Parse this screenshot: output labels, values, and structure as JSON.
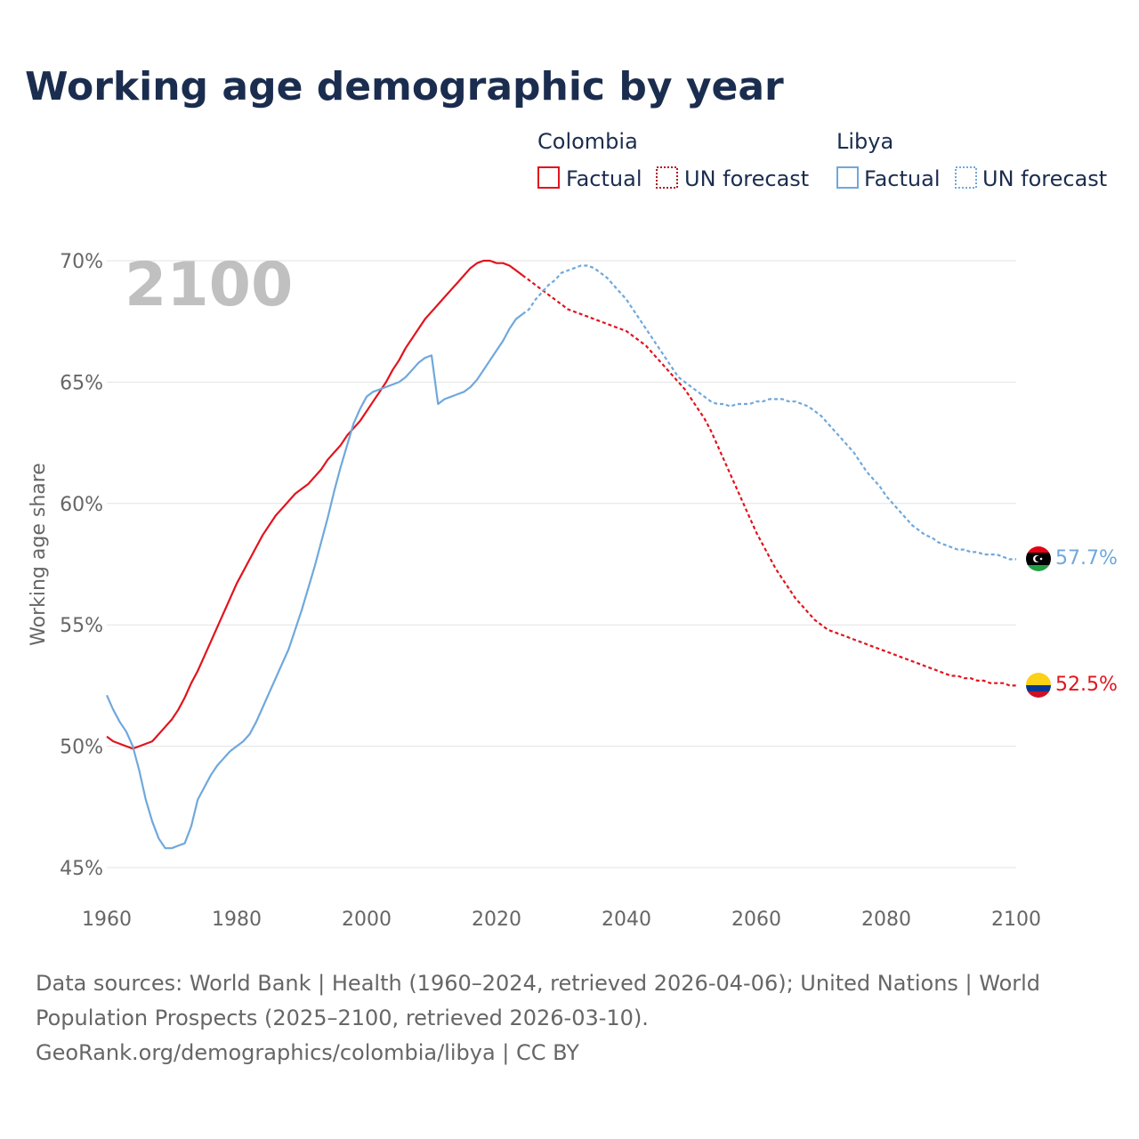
{
  "title": "Working age demographic by year",
  "year_watermark": "2100",
  "legend": {
    "groups": [
      {
        "country": "Colombia",
        "factual_label": "Factual",
        "forecast_label": "UN forecast",
        "color": "#e0141e"
      },
      {
        "country": "Libya",
        "factual_label": "Factual",
        "forecast_label": "UN forecast",
        "color": "#6fa8dc"
      }
    ]
  },
  "end_labels": {
    "libya": "57.7%",
    "colombia": "52.5%"
  },
  "source_lines": [
    "Data sources: World Bank | Health (1960–2024, retrieved 2026-04-06); United Nations | World",
    "Population Prospects (2025–2100, retrieved 2026-03-10).",
    "GeoRank.org/demographics/colombia/libya | CC BY"
  ],
  "chart_data": {
    "type": "line",
    "title": "Working age demographic by year",
    "xlabel": "",
    "ylabel": "Working age share",
    "xlim": [
      1960,
      2100
    ],
    "ylim": [
      45,
      70
    ],
    "x_ticks": [
      1960,
      1980,
      2000,
      2020,
      2040,
      2060,
      2080,
      2100
    ],
    "y_ticks": [
      45,
      50,
      55,
      60,
      65,
      70
    ],
    "y_tick_labels": [
      "45%",
      "50%",
      "55%",
      "60%",
      "65%",
      "70%"
    ],
    "grid": true,
    "legend_position": "top-right",
    "factual_end_year": 2024,
    "series": [
      {
        "name": "Colombia",
        "color": "#e0141e",
        "points": [
          [
            1960,
            50.4
          ],
          [
            1961,
            50.2
          ],
          [
            1962,
            50.1
          ],
          [
            1963,
            50.0
          ],
          [
            1964,
            49.9
          ],
          [
            1965,
            50.0
          ],
          [
            1966,
            50.1
          ],
          [
            1967,
            50.2
          ],
          [
            1968,
            50.5
          ],
          [
            1969,
            50.8
          ],
          [
            1970,
            51.1
          ],
          [
            1971,
            51.5
          ],
          [
            1972,
            52.0
          ],
          [
            1973,
            52.6
          ],
          [
            1974,
            53.1
          ],
          [
            1975,
            53.7
          ],
          [
            1976,
            54.3
          ],
          [
            1977,
            54.9
          ],
          [
            1978,
            55.5
          ],
          [
            1979,
            56.1
          ],
          [
            1980,
            56.7
          ],
          [
            1981,
            57.2
          ],
          [
            1982,
            57.7
          ],
          [
            1983,
            58.2
          ],
          [
            1984,
            58.7
          ],
          [
            1985,
            59.1
          ],
          [
            1986,
            59.5
          ],
          [
            1987,
            59.8
          ],
          [
            1988,
            60.1
          ],
          [
            1989,
            60.4
          ],
          [
            1990,
            60.6
          ],
          [
            1991,
            60.8
          ],
          [
            1992,
            61.1
          ],
          [
            1993,
            61.4
          ],
          [
            1994,
            61.8
          ],
          [
            1995,
            62.1
          ],
          [
            1996,
            62.4
          ],
          [
            1997,
            62.8
          ],
          [
            1998,
            63.1
          ],
          [
            1999,
            63.4
          ],
          [
            2000,
            63.8
          ],
          [
            2001,
            64.2
          ],
          [
            2002,
            64.6
          ],
          [
            2003,
            65.0
          ],
          [
            2004,
            65.5
          ],
          [
            2005,
            65.9
          ],
          [
            2006,
            66.4
          ],
          [
            2007,
            66.8
          ],
          [
            2008,
            67.2
          ],
          [
            2009,
            67.6
          ],
          [
            2010,
            67.9
          ],
          [
            2011,
            68.2
          ],
          [
            2012,
            68.5
          ],
          [
            2013,
            68.8
          ],
          [
            2014,
            69.1
          ],
          [
            2015,
            69.4
          ],
          [
            2016,
            69.7
          ],
          [
            2017,
            69.9
          ],
          [
            2018,
            70.0
          ],
          [
            2019,
            70.0
          ],
          [
            2020,
            69.9
          ],
          [
            2021,
            69.9
          ],
          [
            2022,
            69.8
          ],
          [
            2023,
            69.6
          ],
          [
            2024,
            69.4
          ],
          [
            2025,
            69.2
          ],
          [
            2026,
            69.0
          ],
          [
            2027,
            68.8
          ],
          [
            2028,
            68.6
          ],
          [
            2029,
            68.4
          ],
          [
            2030,
            68.2
          ],
          [
            2031,
            68.0
          ],
          [
            2032,
            67.9
          ],
          [
            2033,
            67.8
          ],
          [
            2034,
            67.7
          ],
          [
            2035,
            67.6
          ],
          [
            2036,
            67.5
          ],
          [
            2037,
            67.4
          ],
          [
            2038,
            67.3
          ],
          [
            2039,
            67.2
          ],
          [
            2040,
            67.1
          ],
          [
            2041,
            66.9
          ],
          [
            2042,
            66.7
          ],
          [
            2043,
            66.5
          ],
          [
            2044,
            66.2
          ],
          [
            2045,
            65.9
          ],
          [
            2046,
            65.6
          ],
          [
            2047,
            65.3
          ],
          [
            2048,
            65.0
          ],
          [
            2049,
            64.7
          ],
          [
            2050,
            64.3
          ],
          [
            2051,
            63.9
          ],
          [
            2052,
            63.5
          ],
          [
            2053,
            63.0
          ],
          [
            2054,
            62.4
          ],
          [
            2055,
            61.8
          ],
          [
            2056,
            61.2
          ],
          [
            2057,
            60.6
          ],
          [
            2058,
            60.0
          ],
          [
            2059,
            59.4
          ],
          [
            2060,
            58.8
          ],
          [
            2061,
            58.3
          ],
          [
            2062,
            57.8
          ],
          [
            2063,
            57.3
          ],
          [
            2064,
            56.9
          ],
          [
            2065,
            56.5
          ],
          [
            2066,
            56.1
          ],
          [
            2067,
            55.8
          ],
          [
            2068,
            55.5
          ],
          [
            2069,
            55.2
          ],
          [
            2070,
            55.0
          ],
          [
            2071,
            54.8
          ],
          [
            2072,
            54.7
          ],
          [
            2073,
            54.6
          ],
          [
            2074,
            54.5
          ],
          [
            2075,
            54.4
          ],
          [
            2076,
            54.3
          ],
          [
            2077,
            54.2
          ],
          [
            2078,
            54.1
          ],
          [
            2079,
            54.0
          ],
          [
            2080,
            53.9
          ],
          [
            2081,
            53.8
          ],
          [
            2082,
            53.7
          ],
          [
            2083,
            53.6
          ],
          [
            2084,
            53.5
          ],
          [
            2085,
            53.4
          ],
          [
            2086,
            53.3
          ],
          [
            2087,
            53.2
          ],
          [
            2088,
            53.1
          ],
          [
            2089,
            53.0
          ],
          [
            2090,
            52.9
          ],
          [
            2091,
            52.9
          ],
          [
            2092,
            52.8
          ],
          [
            2093,
            52.8
          ],
          [
            2094,
            52.7
          ],
          [
            2095,
            52.7
          ],
          [
            2096,
            52.6
          ],
          [
            2097,
            52.6
          ],
          [
            2098,
            52.6
          ],
          [
            2099,
            52.5
          ],
          [
            2100,
            52.5
          ]
        ]
      },
      {
        "name": "Libya",
        "color": "#6fa8dc",
        "points": [
          [
            1960,
            52.1
          ],
          [
            1961,
            51.5
          ],
          [
            1962,
            51.0
          ],
          [
            1963,
            50.6
          ],
          [
            1964,
            50.0
          ],
          [
            1965,
            49.0
          ],
          [
            1966,
            47.8
          ],
          [
            1967,
            46.9
          ],
          [
            1968,
            46.2
          ],
          [
            1969,
            45.8
          ],
          [
            1970,
            45.8
          ],
          [
            1971,
            45.9
          ],
          [
            1972,
            46.0
          ],
          [
            1973,
            46.7
          ],
          [
            1974,
            47.8
          ],
          [
            1975,
            48.3
          ],
          [
            1976,
            48.8
          ],
          [
            1977,
            49.2
          ],
          [
            1978,
            49.5
          ],
          [
            1979,
            49.8
          ],
          [
            1980,
            50.0
          ],
          [
            1981,
            50.2
          ],
          [
            1982,
            50.5
          ],
          [
            1983,
            51.0
          ],
          [
            1984,
            51.6
          ],
          [
            1985,
            52.2
          ],
          [
            1986,
            52.8
          ],
          [
            1987,
            53.4
          ],
          [
            1988,
            54.0
          ],
          [
            1989,
            54.8
          ],
          [
            1990,
            55.6
          ],
          [
            1991,
            56.5
          ],
          [
            1992,
            57.4
          ],
          [
            1993,
            58.4
          ],
          [
            1994,
            59.4
          ],
          [
            1995,
            60.5
          ],
          [
            1996,
            61.5
          ],
          [
            1997,
            62.4
          ],
          [
            1998,
            63.3
          ],
          [
            1999,
            63.9
          ],
          [
            2000,
            64.4
          ],
          [
            2001,
            64.6
          ],
          [
            2002,
            64.7
          ],
          [
            2003,
            64.8
          ],
          [
            2004,
            64.9
          ],
          [
            2005,
            65.0
          ],
          [
            2006,
            65.2
          ],
          [
            2007,
            65.5
          ],
          [
            2008,
            65.8
          ],
          [
            2009,
            66.0
          ],
          [
            2010,
            66.1
          ],
          [
            2011,
            64.1
          ],
          [
            2012,
            64.3
          ],
          [
            2013,
            64.4
          ],
          [
            2014,
            64.5
          ],
          [
            2015,
            64.6
          ],
          [
            2016,
            64.8
          ],
          [
            2017,
            65.1
          ],
          [
            2018,
            65.5
          ],
          [
            2019,
            65.9
          ],
          [
            2020,
            66.3
          ],
          [
            2021,
            66.7
          ],
          [
            2022,
            67.2
          ],
          [
            2023,
            67.6
          ],
          [
            2024,
            67.8
          ],
          [
            2025,
            68.0
          ],
          [
            2026,
            68.4
          ],
          [
            2027,
            68.7
          ],
          [
            2028,
            69.0
          ],
          [
            2029,
            69.2
          ],
          [
            2030,
            69.5
          ],
          [
            2031,
            69.6
          ],
          [
            2032,
            69.7
          ],
          [
            2033,
            69.8
          ],
          [
            2034,
            69.8
          ],
          [
            2035,
            69.7
          ],
          [
            2036,
            69.5
          ],
          [
            2037,
            69.3
          ],
          [
            2038,
            69.0
          ],
          [
            2039,
            68.7
          ],
          [
            2040,
            68.4
          ],
          [
            2041,
            68.0
          ],
          [
            2042,
            67.6
          ],
          [
            2043,
            67.2
          ],
          [
            2044,
            66.8
          ],
          [
            2045,
            66.4
          ],
          [
            2046,
            66.0
          ],
          [
            2047,
            65.6
          ],
          [
            2048,
            65.2
          ],
          [
            2049,
            65.0
          ],
          [
            2050,
            64.8
          ],
          [
            2051,
            64.6
          ],
          [
            2052,
            64.4
          ],
          [
            2053,
            64.2
          ],
          [
            2054,
            64.1
          ],
          [
            2055,
            64.1
          ],
          [
            2056,
            64.0
          ],
          [
            2057,
            64.1
          ],
          [
            2058,
            64.1
          ],
          [
            2059,
            64.1
          ],
          [
            2060,
            64.2
          ],
          [
            2061,
            64.2
          ],
          [
            2062,
            64.3
          ],
          [
            2063,
            64.3
          ],
          [
            2064,
            64.3
          ],
          [
            2065,
            64.2
          ],
          [
            2066,
            64.2
          ],
          [
            2067,
            64.1
          ],
          [
            2068,
            64.0
          ],
          [
            2069,
            63.8
          ],
          [
            2070,
            63.6
          ],
          [
            2071,
            63.3
          ],
          [
            2072,
            63.0
          ],
          [
            2073,
            62.7
          ],
          [
            2074,
            62.4
          ],
          [
            2075,
            62.1
          ],
          [
            2076,
            61.7
          ],
          [
            2077,
            61.3
          ],
          [
            2078,
            61.0
          ],
          [
            2079,
            60.7
          ],
          [
            2080,
            60.3
          ],
          [
            2081,
            60.0
          ],
          [
            2082,
            59.7
          ],
          [
            2083,
            59.4
          ],
          [
            2084,
            59.1
          ],
          [
            2085,
            58.9
          ],
          [
            2086,
            58.7
          ],
          [
            2087,
            58.6
          ],
          [
            2088,
            58.4
          ],
          [
            2089,
            58.3
          ],
          [
            2090,
            58.2
          ],
          [
            2091,
            58.1
          ],
          [
            2092,
            58.1
          ],
          [
            2093,
            58.0
          ],
          [
            2094,
            58.0
          ],
          [
            2095,
            57.9
          ],
          [
            2096,
            57.9
          ],
          [
            2097,
            57.9
          ],
          [
            2098,
            57.8
          ],
          [
            2099,
            57.7
          ],
          [
            2100,
            57.7
          ]
        ]
      }
    ]
  }
}
